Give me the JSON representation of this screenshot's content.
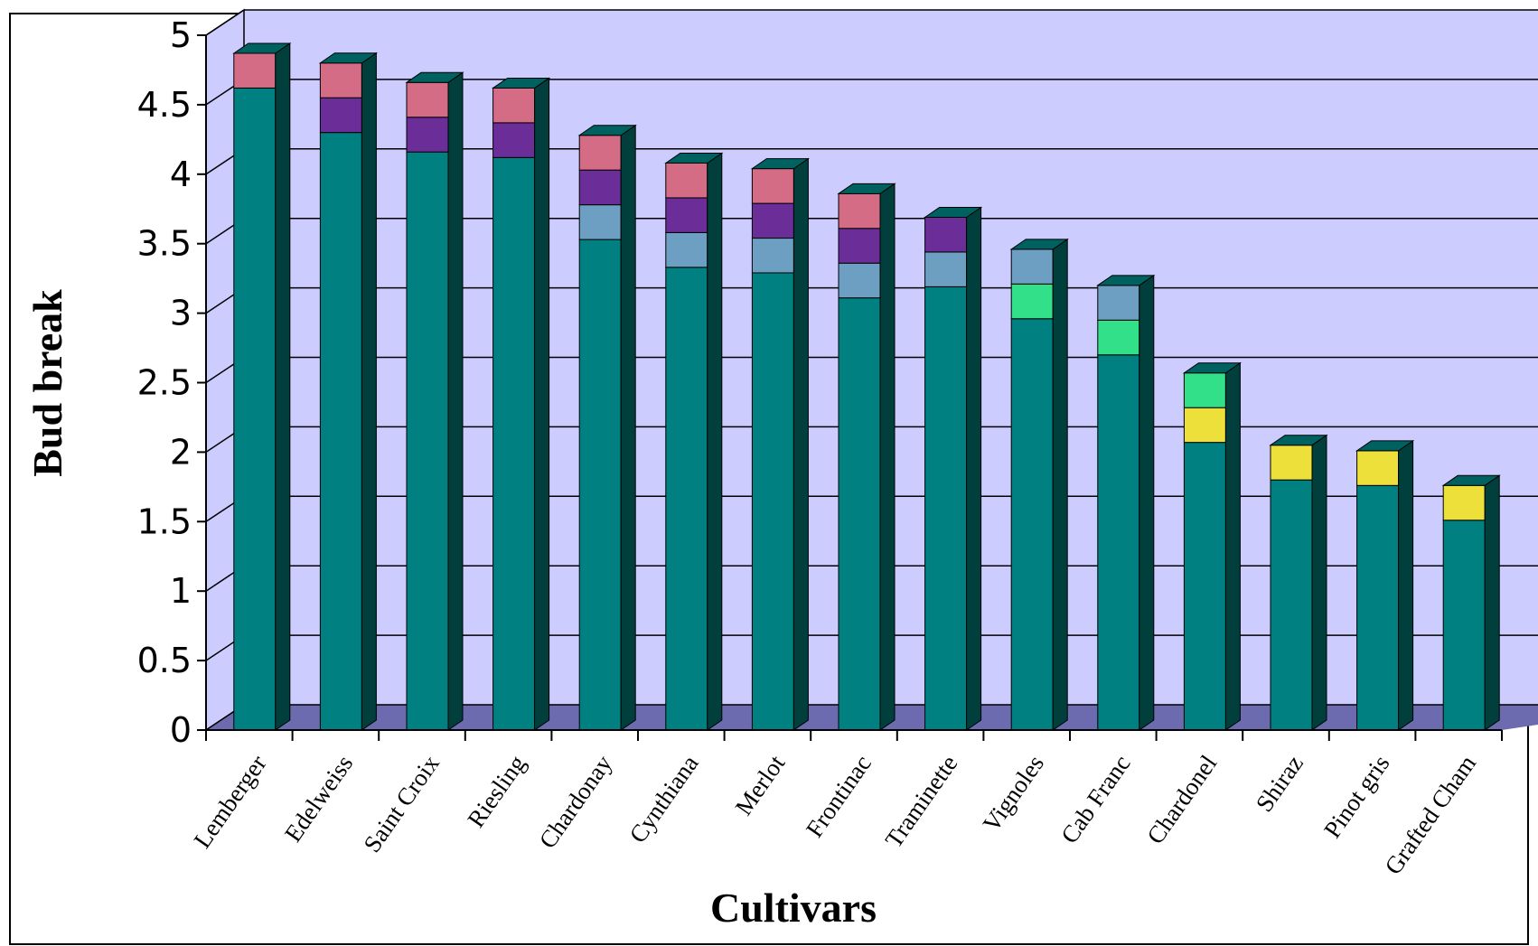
{
  "chart_data": {
    "type": "bar",
    "stacked": true,
    "three_d": true,
    "xlabel": "Cultivars",
    "ylabel": "Bud break",
    "ylim": [
      0,
      5
    ],
    "yticks": [
      0,
      0.5,
      1,
      1.5,
      2,
      2.5,
      3,
      3.5,
      4,
      4.5,
      5
    ],
    "grid": true,
    "legend": "none",
    "categories": [
      "Lemberger",
      "Edelweiss",
      "Saint Croix",
      "Riesling",
      "Chardonay",
      "Cynthiana",
      "Merlot",
      "Frontinac",
      "Traminette",
      "Vignoles",
      "Cab Franc",
      "Chardonel",
      "Shiraz",
      "Pinot gris",
      "Grafted Cham"
    ],
    "segments": [
      {
        "color": "#008080",
        "values": [
          4.62,
          4.3,
          4.16,
          4.12,
          3.53,
          3.33,
          3.29,
          3.11,
          3.19,
          2.96,
          2.7,
          2.07,
          1.8,
          1.76,
          1.51
        ]
      },
      {
        "color": "#EDE03A",
        "values": [
          0,
          0,
          0,
          0,
          0,
          0,
          0,
          0,
          0,
          0,
          0,
          0.25,
          0.25,
          0.25,
          0.25
        ]
      },
      {
        "color": "#33E08A",
        "values": [
          0,
          0,
          0,
          0,
          0,
          0,
          0,
          0,
          0,
          0.25,
          0.25,
          0.25,
          0,
          0,
          0
        ]
      },
      {
        "color": "#6D9FC2",
        "values": [
          0,
          0,
          0,
          0,
          0.25,
          0.25,
          0.25,
          0.25,
          0.25,
          0.25,
          0.25,
          0,
          0,
          0,
          0
        ]
      },
      {
        "color": "#6B2E98",
        "values": [
          0,
          0.25,
          0.25,
          0.25,
          0.25,
          0.25,
          0.25,
          0.25,
          0.25,
          0,
          0,
          0,
          0,
          0,
          0
        ]
      },
      {
        "color": "#D46C86",
        "values": [
          0.25,
          0.25,
          0.25,
          0.25,
          0.25,
          0.25,
          0.25,
          0.25,
          0,
          0,
          0,
          0,
          0,
          0,
          0
        ]
      }
    ],
    "colors": {
      "wall": "#CCCCFF",
      "floor": "#6C6BAF",
      "bar_side": "#003F3C",
      "bar_top": "#006260",
      "grid": "#000000"
    }
  }
}
